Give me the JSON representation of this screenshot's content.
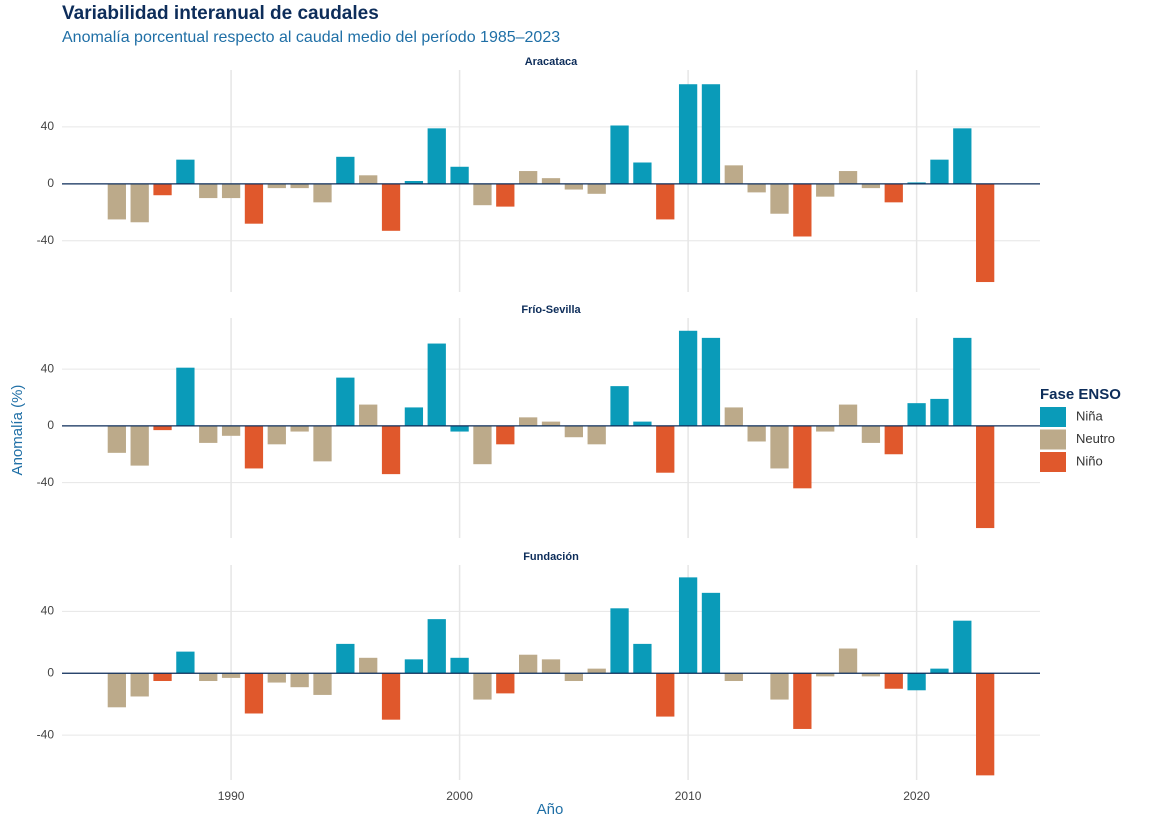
{
  "chart_data": {
    "type": "bar",
    "title": "Variabilidad interanual de caudales",
    "subtitle": "Anomalía porcentual respecto al caudal medio del período 1985–2023",
    "x_label": "Año",
    "y_label": "Anomalía (%)",
    "legend_title": "Fase ENSO",
    "legend": [
      {
        "name": "Niña",
        "color": "#0a9bb9"
      },
      {
        "name": "Neutro",
        "color": "#bcaa8a"
      },
      {
        "name": "Niño",
        "color": "#e0582c"
      }
    ],
    "x": [
      1985,
      1986,
      1987,
      1988,
      1989,
      1990,
      1991,
      1992,
      1993,
      1994,
      1995,
      1996,
      1997,
      1998,
      1999,
      2000,
      2001,
      2002,
      2003,
      2004,
      2005,
      2006,
      2007,
      2008,
      2009,
      2010,
      2011,
      2012,
      2013,
      2014,
      2015,
      2016,
      2017,
      2018,
      2019,
      2020,
      2021,
      2022,
      2023
    ],
    "phase": [
      "Neutro",
      "Neutro",
      "Niño",
      "Niña",
      "Neutro",
      "Neutro",
      "Niño",
      "Neutro",
      "Neutro",
      "Neutro",
      "Niña",
      "Neutro",
      "Niño",
      "Niña",
      "Niña",
      "Niña",
      "Neutro",
      "Niño",
      "Neutro",
      "Neutro",
      "Neutro",
      "Neutro",
      "Niña",
      "Niña",
      "Niño",
      "Niña",
      "Niña",
      "Neutro",
      "Neutro",
      "Neutro",
      "Niño",
      "Neutro",
      "Neutro",
      "Neutro",
      "Niño",
      "Niña",
      "Niña",
      "Niña",
      "Niño"
    ],
    "xlim": [
      1982.6,
      2025.4
    ],
    "xticks": [
      1990,
      2000,
      2010,
      2020
    ],
    "grid": true,
    "facets": [
      {
        "title": "Aracataca",
        "ylim": [
          -76,
          80
        ],
        "yticks": [
          -40,
          0,
          40
        ],
        "values": [
          -25,
          -27,
          -8,
          17,
          -10,
          -10,
          -28,
          -3,
          -3,
          -13,
          19,
          6,
          -33,
          2,
          39,
          12,
          -15,
          -16,
          9,
          4,
          -4,
          -7,
          41,
          15,
          -25,
          70,
          70,
          13,
          -6,
          -21,
          -37,
          -9,
          9,
          -3,
          -13,
          1,
          17,
          39,
          -69
        ]
      },
      {
        "title": "Frío-Sevilla",
        "ylim": [
          -79,
          76
        ],
        "yticks": [
          -40,
          0,
          40
        ],
        "values": [
          -19,
          -28,
          -3,
          41,
          -12,
          -7,
          -30,
          -13,
          -4,
          -25,
          34,
          15,
          -34,
          13,
          58,
          -4,
          -27,
          -13,
          6,
          3,
          -8,
          -13,
          28,
          3,
          -33,
          67,
          62,
          13,
          -11,
          -30,
          -44,
          -4,
          15,
          -12,
          -20,
          16,
          19,
          62,
          -72
        ]
      },
      {
        "title": "Fundación",
        "ylim": [
          -69,
          70
        ],
        "yticks": [
          -40,
          0,
          40
        ],
        "values": [
          -22,
          -15,
          -5,
          14,
          -5,
          -3,
          -26,
          -6,
          -9,
          -14,
          19,
          10,
          -30,
          9,
          35,
          10,
          -17,
          -13,
          12,
          9,
          -5,
          3,
          42,
          19,
          -28,
          62,
          52,
          -5,
          0,
          -17,
          -36,
          -2,
          16,
          -2,
          -10,
          -11,
          3,
          34,
          -66
        ]
      }
    ]
  }
}
